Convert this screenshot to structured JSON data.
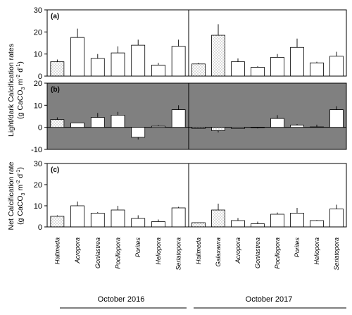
{
  "chart_data": [
    {
      "type": "bar",
      "panel_label": "(a)",
      "ylim": [
        0,
        30
      ],
      "yticks": [
        0,
        10,
        20,
        30
      ],
      "categories": [
        "Halimeda",
        "Acropora",
        "Goniastrea",
        "Pocillopora",
        "Porites",
        "Heliopora",
        "Seriatopora",
        "Halimeda",
        "Galaxaura",
        "Acropora",
        "Goniastrea",
        "Pocillopora",
        "Porites",
        "Heliopora",
        "Seriatopora"
      ],
      "series": [
        {
          "values": [
            6.5,
            17.5,
            8,
            10.5,
            14,
            5,
            13.5,
            5.5,
            18.5,
            6.5,
            4,
            8.5,
            13,
            6,
            9
          ],
          "errors": [
            1,
            4,
            2,
            3,
            2.5,
            1,
            3,
            0.5,
            5,
            1.5,
            0.5,
            1.5,
            4,
            0.5,
            2
          ]
        }
      ]
    },
    {
      "type": "bar",
      "panel_label": "(b)",
      "ylim": [
        -10,
        20
      ],
      "yticks": [
        -10,
        0,
        10,
        20
      ],
      "background": "#808080",
      "categories": [
        "Halimeda",
        "Acropora",
        "Goniastrea",
        "Pocillopora",
        "Porites",
        "Heliopora",
        "Seriatopora",
        "Halimeda",
        "Galaxaura",
        "Acropora",
        "Goniastrea",
        "Pocillopora",
        "Porites",
        "Heliopora",
        "Seriatopora"
      ],
      "series": [
        {
          "values": [
            3.5,
            2,
            4.5,
            5.5,
            -4.5,
            0.5,
            8,
            -0.5,
            -1.5,
            -0.5,
            -0.2,
            4,
            1,
            0.2,
            8
          ],
          "errors": [
            1,
            0,
            2,
            1.5,
            1,
            0.5,
            2,
            0,
            0.8,
            0,
            0.3,
            1.5,
            0.5,
            1,
            1.5
          ]
        }
      ]
    },
    {
      "type": "bar",
      "panel_label": "(c)",
      "ylim": [
        0,
        30
      ],
      "yticks": [
        0,
        10,
        20,
        30
      ],
      "categories": [
        "Halimeda",
        "Acropora",
        "Goniastrea",
        "Pocillopora",
        "Porites",
        "Heliopora",
        "Seriatopora",
        "Halimeda",
        "Galaxaura",
        "Acropora",
        "Goniastrea",
        "Pocillopora",
        "Porites",
        "Heliopora",
        "Seriatopora"
      ],
      "series": [
        {
          "values": [
            5,
            10,
            6.5,
            8,
            4,
            2.5,
            9,
            2,
            8,
            3,
            1.5,
            6,
            6.5,
            3,
            8.5
          ],
          "errors": [
            0.5,
            2,
            0.5,
            2,
            1.5,
            1,
            0.5,
            0,
            3,
            1.2,
            1,
            0.8,
            2.5,
            0.3,
            2
          ]
        }
      ]
    }
  ],
  "patterned_categories": [
    0,
    7,
    8
  ],
  "ylabel_top_line1": "Light/dark Calcification rates",
  "ylabel_top_line2": "(g CaCO",
  "ylabel_top_sub": "3",
  "ylabel_top_rest": " m",
  "ylabel_top_sup1": "-2",
  "ylabel_top_d": " d",
  "ylabel_top_sup2": "-1",
  "ylabel_top_close": ")",
  "ylabel_bot_line1": "Net Calcification rate",
  "ylabel_bot_line2": "(g CaCO",
  "ylabel_bot_sub": "3",
  "ylabel_bot_rest": " m",
  "ylabel_bot_sup1": "-2",
  "ylabel_bot_d": " d",
  "ylabel_bot_sup2": "-1",
  "ylabel_bot_close": ")",
  "group_labels": [
    "October 2016",
    "October 2017"
  ],
  "colors": {
    "bar_fill": "#ffffff",
    "panel_b_bg": "#808080",
    "dots": "#555555"
  }
}
